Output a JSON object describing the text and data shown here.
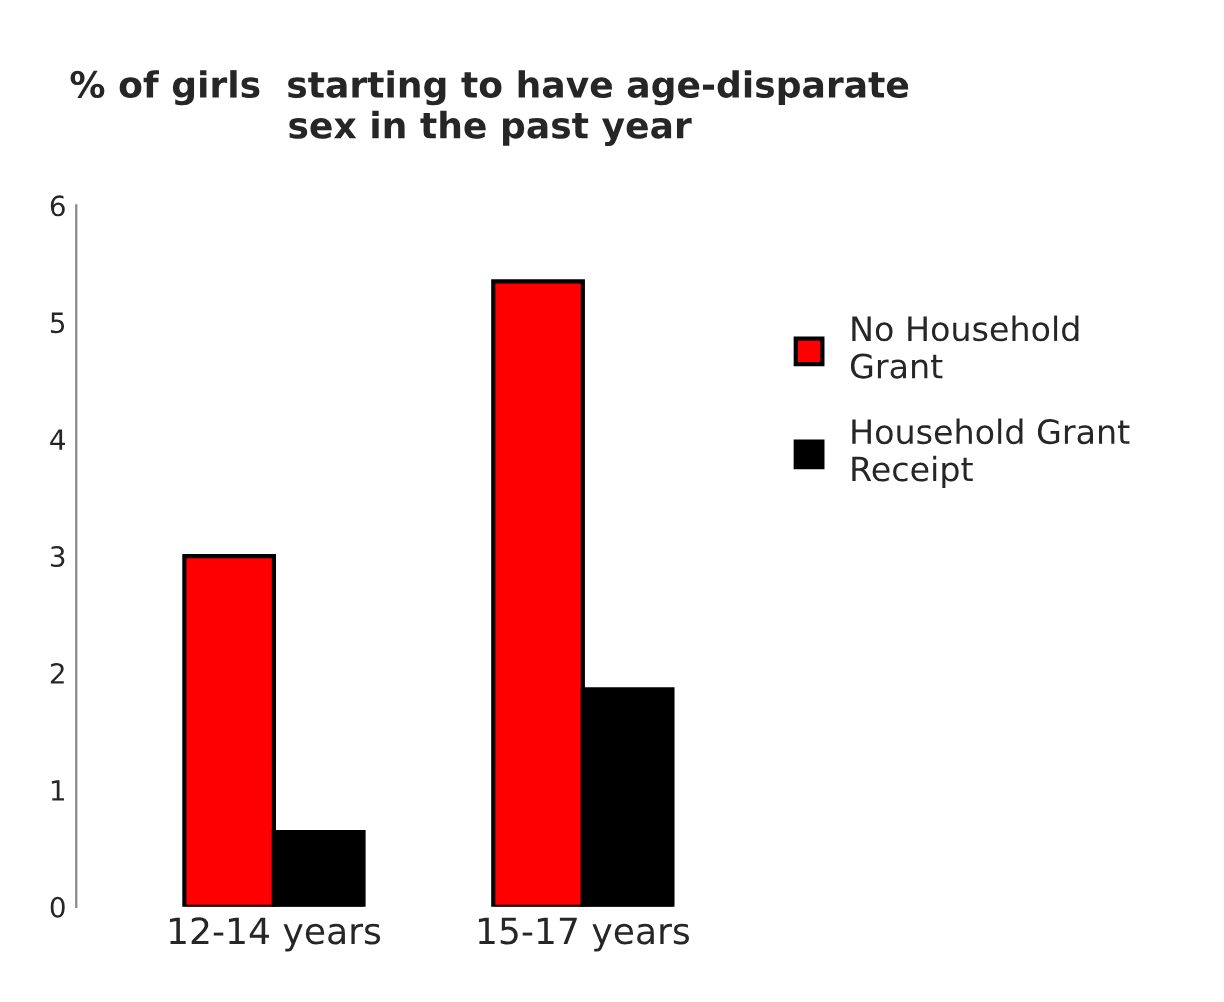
{
  "chart_data": {
    "type": "bar",
    "title": "% of girls  starting to have age-disparate\nsex in the past year",
    "categories": [
      "12-14 years",
      "15-17 years"
    ],
    "series": [
      {
        "name": "No Household\nGrant",
        "color": "#ff0000",
        "values": [
          3.0,
          5.35
        ]
      },
      {
        "name": "Household Grant\nReceipt",
        "color": "#000000",
        "values": [
          0.64,
          1.86
        ]
      }
    ],
    "ylim": [
      0,
      6
    ],
    "yticks": [
      0,
      1,
      2,
      3,
      4,
      5,
      6
    ],
    "grid": false,
    "legend": "right"
  }
}
